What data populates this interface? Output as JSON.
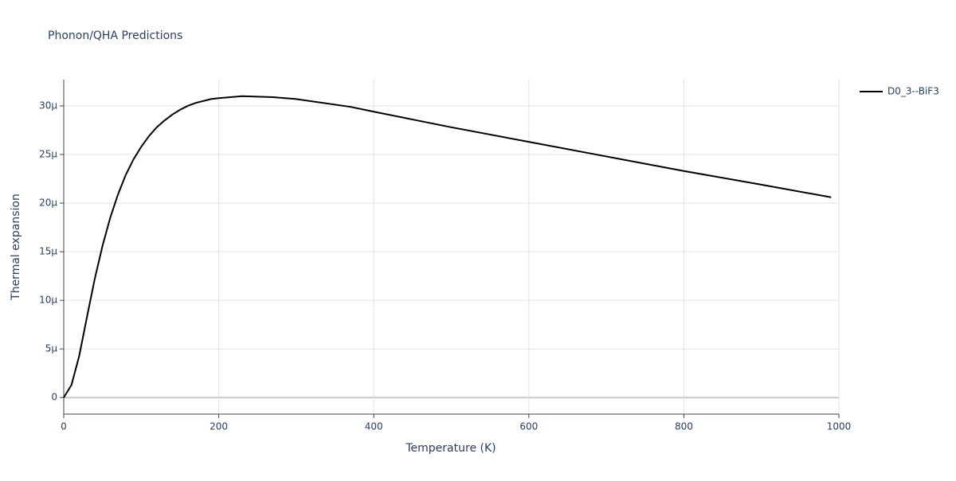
{
  "chart_data": {
    "type": "line",
    "title": "Phonon/QHA Predictions",
    "x_label": "Temperature (K)",
    "y_label": "Thermal expansion",
    "x": [
      0,
      10,
      20,
      30,
      40,
      50,
      60,
      70,
      80,
      90,
      100,
      110,
      120,
      130,
      140,
      150,
      160,
      170,
      180,
      190,
      200,
      230,
      270,
      300,
      370,
      400,
      450,
      500,
      600,
      700,
      800,
      900,
      990
    ],
    "series": [
      {
        "name": "D0_3--BiF3",
        "color": "#000000",
        "values": [
          0,
          1.3e-06,
          4.3e-06,
          8.3e-06,
          1.22e-05,
          1.56e-05,
          1.85e-05,
          2.09e-05,
          2.29e-05,
          2.45e-05,
          2.58e-05,
          2.69e-05,
          2.78e-05,
          2.85e-05,
          2.91e-05,
          2.96e-05,
          3e-05,
          3.03e-05,
          3.05e-05,
          3.07e-05,
          3.08e-05,
          3.1e-05,
          3.09e-05,
          3.07e-05,
          2.99e-05,
          2.94e-05,
          2.86e-05,
          2.78e-05,
          2.63e-05,
          2.48e-05,
          2.33e-05,
          2.19e-05,
          2.06e-05
        ]
      }
    ],
    "xlim": [
      0,
      1000
    ],
    "xticks": [
      0,
      200,
      400,
      600,
      800,
      1000
    ],
    "ylim": [
      -1.7e-06,
      3.27e-05
    ],
    "yticks": [
      0,
      {
        "value": 5e-06,
        "label": "5μ"
      },
      {
        "value": 1e-05,
        "label": "10μ"
      },
      {
        "value": 1.5e-05,
        "label": "15μ"
      },
      {
        "value": 2e-05,
        "label": "20μ"
      },
      {
        "value": 2.5e-05,
        "label": "25μ"
      },
      {
        "value": 3e-05,
        "label": "30μ"
      }
    ],
    "grid": true,
    "legend": "right"
  }
}
